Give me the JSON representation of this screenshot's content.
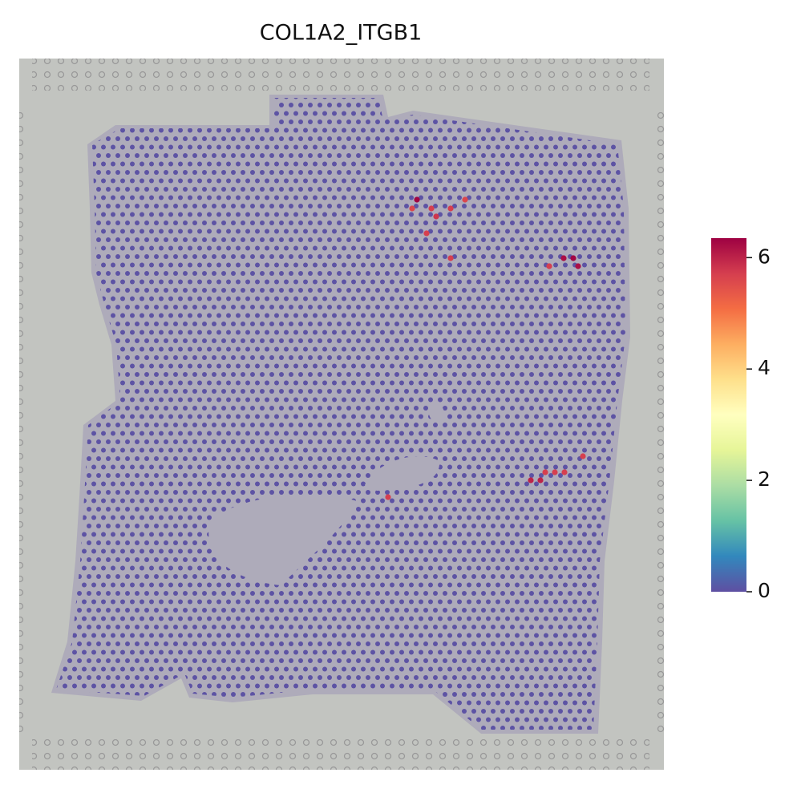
{
  "chart_data": {
    "type": "scatter",
    "title": "COL1A2_ITGB1",
    "xlim": [
      0,
      804
    ],
    "ylim": [
      887,
      0
    ],
    "x": [
      496,
      490,
      514,
      538,
      556,
      520,
      508,
      538,
      679,
      691,
      661,
      697,
      703,
      638,
      650,
      656,
      668,
      680,
      460
    ],
    "y": [
      176,
      187,
      187,
      187,
      176,
      197,
      218,
      249,
      249,
      249,
      259,
      259,
      496,
      526,
      526,
      516,
      516,
      516,
      547
    ],
    "values": [
      6.3,
      5.6,
      5.7,
      5.7,
      5.6,
      5.8,
      5.7,
      5.7,
      6.2,
      6.3,
      5.7,
      6.2,
      5.7,
      6.0,
      6.0,
      5.7,
      5.7,
      5.7,
      5.7
    ],
    "colormap": [
      "#5e4fa2",
      "#3288bd",
      "#66c2a5",
      "#abdda4",
      "#e6f598",
      "#ffffbf",
      "#fee08b",
      "#fdae61",
      "#f46d43",
      "#d53e4f",
      "#9e0142"
    ],
    "clim": [
      0,
      6.35
    ],
    "cticks": [
      0,
      2,
      4,
      6
    ]
  }
}
